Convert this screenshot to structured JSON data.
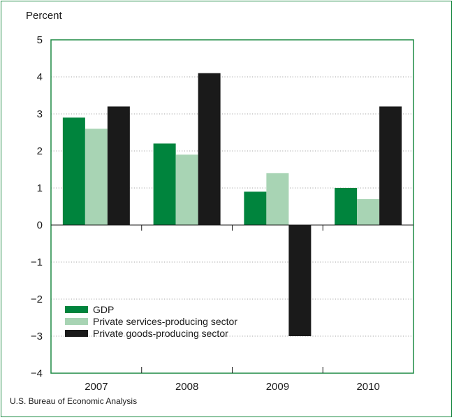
{
  "chart_data": {
    "type": "bar",
    "title": "",
    "ylabel": "Percent",
    "xlabel": "",
    "categories": [
      "2007",
      "2008",
      "2009",
      "2010"
    ],
    "ylim": [
      -4,
      5
    ],
    "yticks": [
      -4,
      -3,
      -2,
      -1,
      0,
      1,
      2,
      3,
      4,
      5
    ],
    "ytick_labels": [
      "−4",
      "−3",
      "−2",
      "−1",
      "0",
      "1",
      "2",
      "3",
      "4",
      "5"
    ],
    "grid": "horizontal dotted",
    "legend_position": "bottom-left",
    "series": [
      {
        "name": "GDP",
        "color": "#00843d",
        "values": [
          2.9,
          2.2,
          0.9,
          1.0
        ]
      },
      {
        "name": "Private services-producing sector",
        "color": "#a8d4b4",
        "values": [
          2.6,
          1.9,
          1.4,
          0.7
        ]
      },
      {
        "name": "Private goods-producing sector",
        "color": "#1a1a1a",
        "values": [
          3.2,
          4.1,
          -3.0,
          3.2
        ]
      }
    ],
    "source": "U.S. Bureau of Economic Analysis"
  }
}
